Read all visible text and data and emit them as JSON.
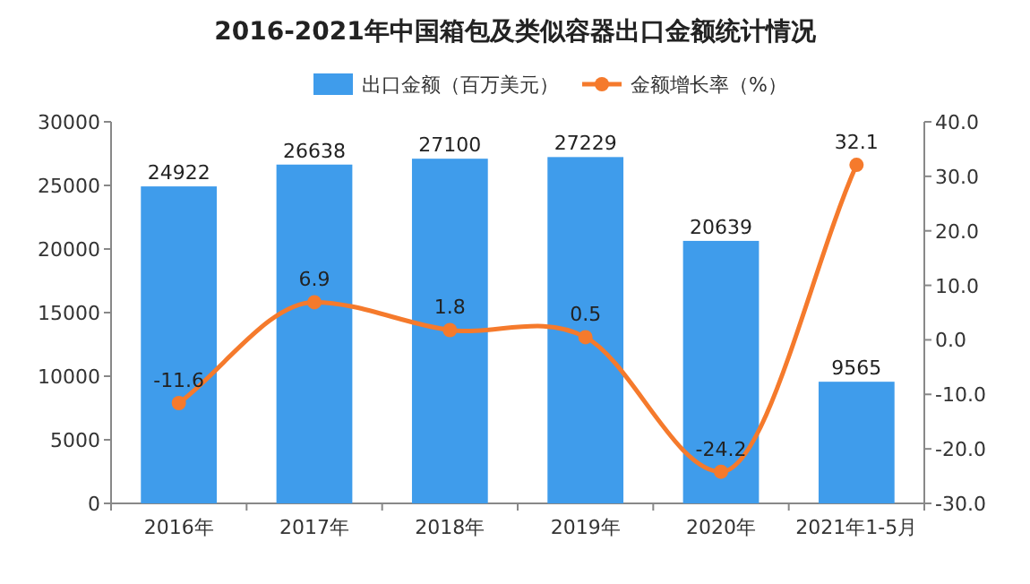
{
  "chart_data": {
    "type": "bar",
    "title": "2016-2021年中国箱包及类似容器出口金额统计情况",
    "categories": [
      "2016年",
      "2017年",
      "2018年",
      "2019年",
      "2020年",
      "2021年1-5月"
    ],
    "series": [
      {
        "name": "出口金额（百万美元）",
        "color": "#3f9ceb",
        "values": [
          24922,
          26638,
          27100,
          27229,
          20639,
          9565
        ]
      },
      {
        "name": "金额增长率（%）",
        "type": "line",
        "axis": "y2",
        "color": "#f57a2c",
        "marker": "circle",
        "values": [
          -11.6,
          6.9,
          1.8,
          0.5,
          -24.2,
          32.1
        ]
      }
    ],
    "ylim": [
      0,
      30000
    ],
    "yticks": [
      0,
      5000,
      10000,
      15000,
      20000,
      25000,
      30000
    ],
    "y2lim": [
      -30,
      40
    ],
    "y2ticks": [
      {
        "value": -30,
        "label": "-30.0"
      },
      {
        "value": -20,
        "label": "-20.0"
      },
      {
        "value": -10,
        "label": "-10.0"
      },
      {
        "value": 0,
        "label": "0.0"
      },
      {
        "value": 10,
        "label": "10.0"
      },
      {
        "value": 20,
        "label": "20.0"
      },
      {
        "value": 30,
        "label": "30.0"
      },
      {
        "value": 40,
        "label": "40.0"
      }
    ],
    "data_labels": true,
    "legend": "top",
    "grid": false
  }
}
